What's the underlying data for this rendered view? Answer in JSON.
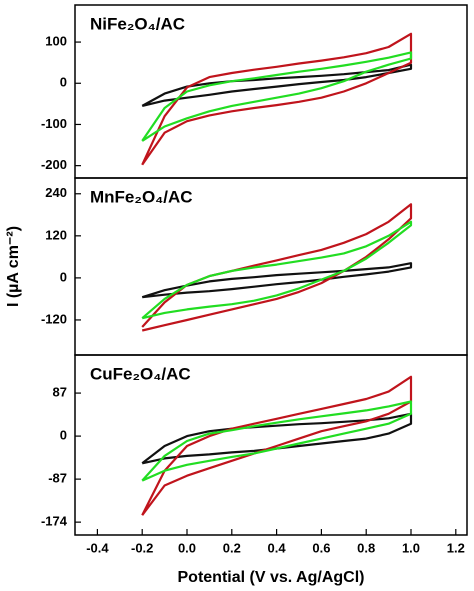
{
  "chart_data": [
    {
      "type": "line",
      "title": "NiFe₂O₄/AC",
      "x": [
        -0.2,
        -0.1,
        0,
        0.1,
        0.2,
        0.3,
        0.4,
        0.5,
        0.6,
        0.7,
        0.8,
        0.9,
        1.0,
        1.0,
        0.9,
        0.8,
        0.7,
        0.6,
        0.5,
        0.4,
        0.3,
        0.2,
        0.1,
        0,
        -0.1,
        -0.2
      ],
      "xlim": [
        -0.5,
        1.25
      ],
      "ylim": [
        -230,
        190
      ],
      "yticks": [
        -200,
        -100,
        0,
        100
      ],
      "series": [
        {
          "color": "#111111",
          "values": [
            -55,
            -25,
            -8,
            0,
            5,
            8,
            12,
            15,
            18,
            22,
            27,
            32,
            45,
            35,
            25,
            15,
            8,
            3,
            -2,
            -8,
            -14,
            -20,
            -28,
            -35,
            -42,
            -55
          ]
        },
        {
          "color": "#c0141c",
          "values": [
            -198,
            -80,
            -10,
            15,
            25,
            33,
            40,
            48,
            55,
            63,
            73,
            88,
            120,
            50,
            25,
            0,
            -20,
            -35,
            -45,
            -53,
            -60,
            -68,
            -78,
            -92,
            -120,
            -198
          ]
        },
        {
          "color": "#22dd22",
          "values": [
            -140,
            -60,
            -20,
            -5,
            5,
            12,
            20,
            28,
            35,
            43,
            52,
            62,
            75,
            60,
            45,
            28,
            5,
            -12,
            -25,
            -35,
            -45,
            -55,
            -68,
            -85,
            -105,
            -140
          ]
        }
      ]
    },
    {
      "type": "line",
      "title": "MnFe₂O₄/AC",
      "ylabel": "I (µA cm⁻²)",
      "x": [
        -0.2,
        -0.1,
        0,
        0.1,
        0.2,
        0.3,
        0.4,
        0.5,
        0.6,
        0.7,
        0.8,
        0.9,
        1.0,
        1.0,
        0.9,
        0.8,
        0.7,
        0.6,
        0.5,
        0.4,
        0.3,
        0.2,
        0.1,
        0,
        -0.1,
        -0.2
      ],
      "xlim": [
        -0.5,
        1.25
      ],
      "ylim": [
        -220,
        285
      ],
      "yticks": [
        -120,
        0,
        120,
        240
      ],
      "series": [
        {
          "color": "#111111",
          "values": [
            -55,
            -35,
            -22,
            -10,
            -3,
            2,
            8,
            12,
            16,
            20,
            25,
            30,
            42,
            30,
            18,
            10,
            3,
            -5,
            -12,
            -18,
            -25,
            -32,
            -38,
            -42,
            -48,
            -55
          ]
        },
        {
          "color": "#c0141c",
          "values": [
            -140,
            -70,
            -20,
            5,
            20,
            35,
            50,
            65,
            80,
            100,
            125,
            160,
            210,
            170,
            110,
            60,
            20,
            -15,
            -40,
            -60,
            -75,
            -90,
            -105,
            -120,
            -135,
            -150
          ]
        },
        {
          "color": "#22dd22",
          "values": [
            -115,
            -60,
            -20,
            5,
            20,
            30,
            38,
            48,
            58,
            70,
            90,
            120,
            160,
            150,
            100,
            55,
            20,
            -5,
            -30,
            -50,
            -65,
            -75,
            -82,
            -90,
            -100,
            -115
          ]
        }
      ]
    },
    {
      "type": "line",
      "title": "CuFe₂O₄/AC",
      "xlabel": "Potential (V vs. Ag/AgCl)",
      "x": [
        -0.2,
        -0.1,
        0,
        0.1,
        0.2,
        0.3,
        0.4,
        0.5,
        0.6,
        0.7,
        0.8,
        0.9,
        1.0,
        1.0,
        0.9,
        0.8,
        0.7,
        0.6,
        0.5,
        0.4,
        0.3,
        0.2,
        0.1,
        0,
        -0.1,
        -0.2
      ],
      "xlim": [
        -0.5,
        1.25
      ],
      "xticks": [
        -0.4,
        -0.2,
        {
          "value": 0,
          "label": "0.0"
        },
        0.2,
        0.4,
        0.6,
        0.8,
        {
          "value": 1,
          "label": "1.0"
        },
        1.2
      ],
      "ylim": [
        -200,
        164
      ],
      "yticks": [
        -174,
        -87,
        0,
        87
      ],
      "series": [
        {
          "color": "#111111",
          "values": [
            -55,
            -20,
            0,
            10,
            15,
            18,
            21,
            24,
            26,
            29,
            32,
            36,
            45,
            25,
            5,
            -5,
            -10,
            -15,
            -20,
            -25,
            -30,
            -33,
            -37,
            -40,
            -45,
            -55
          ]
        },
        {
          "color": "#c0141c",
          "values": [
            -160,
            -70,
            -20,
            0,
            15,
            25,
            35,
            45,
            55,
            65,
            75,
            90,
            120,
            70,
            45,
            30,
            20,
            10,
            -5,
            -20,
            -35,
            -50,
            -65,
            -80,
            -100,
            -160
          ]
        },
        {
          "color": "#22dd22",
          "values": [
            -90,
            -40,
            -10,
            5,
            12,
            20,
            27,
            34,
            40,
            46,
            52,
            60,
            70,
            45,
            25,
            15,
            5,
            -5,
            -15,
            -25,
            -35,
            -42,
            -50,
            -58,
            -70,
            -90
          ]
        }
      ]
    }
  ]
}
